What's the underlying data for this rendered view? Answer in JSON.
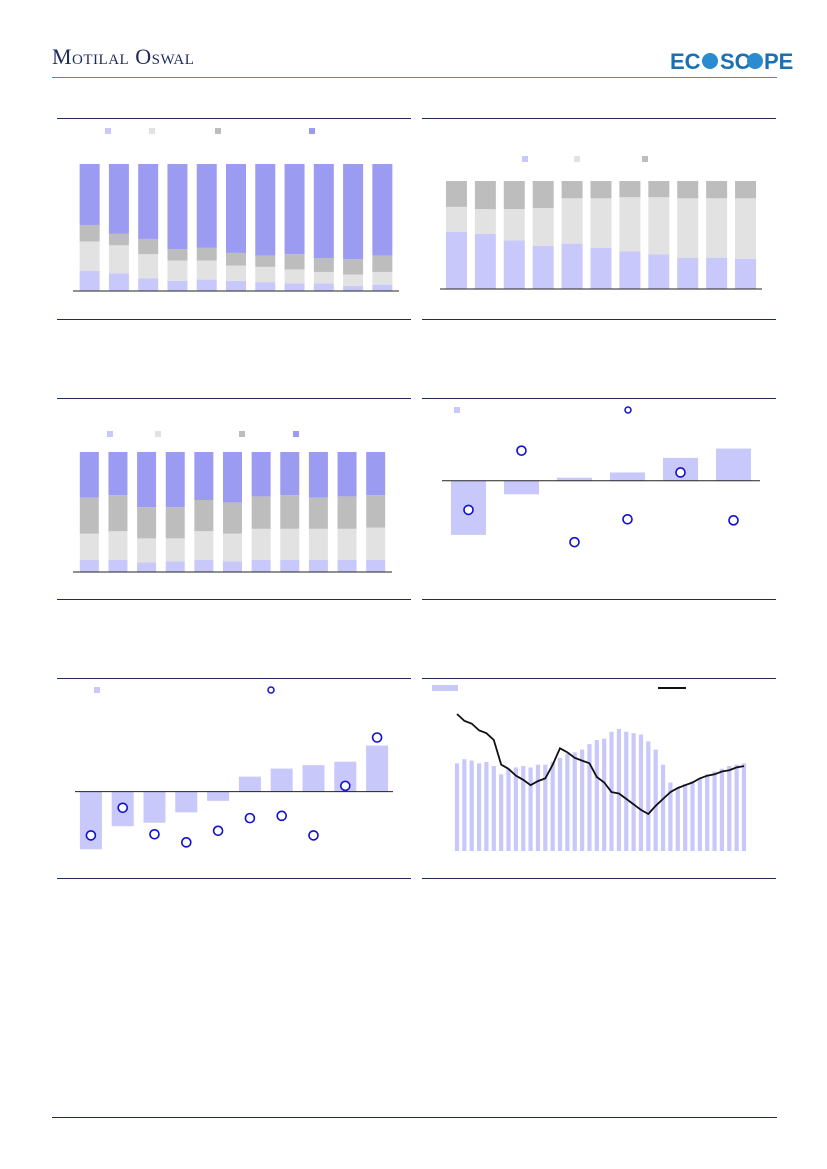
{
  "header": {
    "brand": "Motilal Oswal",
    "logo_text": "EcoScope"
  },
  "colors": {
    "navy": "#1e2a5a",
    "teal": "#2aa3a3",
    "light_blue": "#c8c8fa",
    "light_grey": "#e2e2e2",
    "mid_grey": "#bdbdbd",
    "purple": "#9b9bf2",
    "marker_blue": "#1010d0",
    "line_black": "#111111"
  },
  "chart_data": [
    {
      "id": "stack4-a",
      "type": "bar",
      "stacked": true,
      "legend_position": "top",
      "num_categories": 11,
      "ylim": [
        0,
        100
      ],
      "series": [
        {
          "color": "#c8c8fa",
          "values": [
            16,
            14,
            10,
            8,
            9,
            8,
            7,
            6,
            6,
            4,
            5
          ]
        },
        {
          "color": "#e2e2e2",
          "values": [
            23,
            22,
            19,
            16,
            15,
            12,
            12,
            11,
            9,
            9,
            10
          ]
        },
        {
          "color": "#bdbdbd",
          "values": [
            13,
            9,
            12,
            9,
            10,
            10,
            9,
            12,
            11,
            12,
            13
          ]
        },
        {
          "color": "#9b9bf2",
          "values": [
            48,
            55,
            59,
            67,
            66,
            70,
            72,
            71,
            74,
            75,
            72
          ]
        }
      ]
    },
    {
      "id": "stack3-b",
      "type": "bar",
      "stacked": true,
      "legend_position": "top",
      "num_categories": 11,
      "ylim": [
        0,
        100
      ],
      "series": [
        {
          "color": "#c8c8fa",
          "values": [
            53,
            51,
            45,
            40,
            42,
            38,
            35,
            32,
            29,
            29,
            28
          ]
        },
        {
          "color": "#e2e2e2",
          "values": [
            23,
            23,
            29,
            35,
            42,
            46,
            50,
            53,
            55,
            55,
            56
          ]
        },
        {
          "color": "#bdbdbd",
          "values": [
            24,
            26,
            26,
            25,
            16,
            16,
            15,
            15,
            16,
            16,
            16
          ]
        }
      ]
    },
    {
      "id": "stack4-c",
      "type": "bar",
      "stacked": true,
      "legend_position": "top",
      "num_categories": 11,
      "ylim": [
        0,
        100
      ],
      "series": [
        {
          "color": "#c8c8fa",
          "values": [
            10,
            10,
            8,
            9,
            10,
            9,
            10,
            10,
            10,
            10,
            10
          ]
        },
        {
          "color": "#e2e2e2",
          "values": [
            22,
            24,
            20,
            19,
            24,
            23,
            26,
            26,
            26,
            26,
            27
          ]
        },
        {
          "color": "#bdbdbd",
          "values": [
            30,
            30,
            26,
            26,
            26,
            26,
            27,
            28,
            26,
            27,
            27
          ]
        },
        {
          "color": "#9b9bf2",
          "values": [
            38,
            36,
            46,
            46,
            40,
            42,
            37,
            36,
            38,
            37,
            36
          ]
        }
      ]
    },
    {
      "id": "bar-dot-d",
      "type": "bar",
      "legend_position": "top",
      "num_categories": 6,
      "ylim": [
        -8,
        4.5
      ],
      "series": [
        {
          "color": "#c8c8fa",
          "kind": "bar",
          "values": [
            -5.2,
            -1.3,
            0.3,
            0.8,
            2.2,
            3.1
          ]
        },
        {
          "color": "#1010d0",
          "kind": "marker",
          "values": [
            -2.8,
            2.9,
            -5.9,
            -3.7,
            0.8,
            -3.8
          ]
        }
      ]
    },
    {
      "id": "bar-dot-e",
      "type": "bar",
      "legend_position": "top",
      "num_categories": 10,
      "ylim": [
        -5.5,
        7
      ],
      "series": [
        {
          "color": "#c8c8fa",
          "kind": "bar",
          "values": [
            -5.0,
            -3.0,
            -2.7,
            -1.8,
            -0.8,
            1.3,
            2.0,
            2.3,
            2.6,
            4.0
          ]
        },
        {
          "color": "#1010d0",
          "kind": "marker",
          "values": [
            -3.8,
            -1.4,
            -3.7,
            -4.4,
            -3.4,
            -2.3,
            -2.1,
            -3.8,
            0.5,
            4.7
          ]
        }
      ]
    },
    {
      "id": "bar-line-f",
      "type": "bar",
      "legend_position": "top",
      "ylim": [
        0,
        100
      ],
      "series": [
        {
          "color": "#c8c8fa",
          "kind": "bar",
          "values": [
            64,
            67,
            66,
            64,
            65,
            62,
            56,
            60,
            61,
            62,
            61,
            63,
            63,
            65,
            68,
            71,
            72,
            74,
            78,
            81,
            82,
            87,
            89,
            87,
            86,
            85,
            80,
            74,
            63,
            50,
            46,
            49,
            51,
            53,
            56,
            58,
            60,
            62,
            63,
            64
          ]
        },
        {
          "color": "#111111",
          "kind": "line",
          "values": [
            100,
            95,
            93,
            88,
            86,
            81,
            63,
            60,
            55,
            52,
            48,
            51,
            53,
            63,
            75,
            72,
            68,
            66,
            64,
            54,
            50,
            43,
            42,
            38,
            34,
            30,
            27,
            33,
            38,
            43,
            46,
            48,
            50,
            53,
            55,
            56,
            58,
            59,
            61,
            62
          ]
        }
      ]
    }
  ]
}
